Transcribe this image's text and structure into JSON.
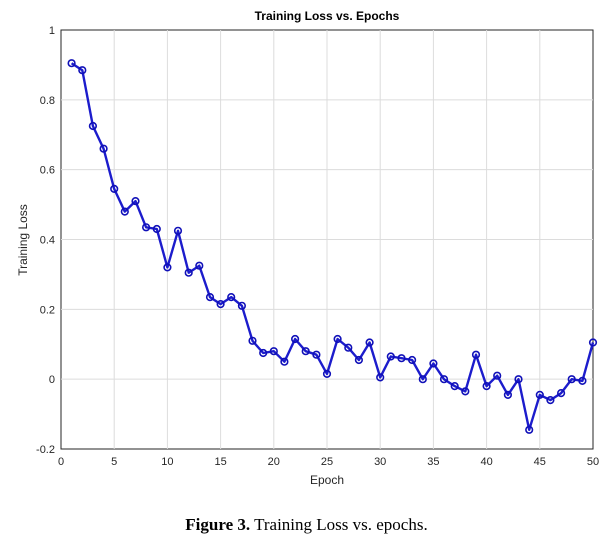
{
  "chart_data": {
    "type": "line",
    "title": "Training Loss vs. Epochs",
    "xlabel": "Epoch",
    "ylabel": "Training Loss",
    "xlim": [
      0,
      50
    ],
    "ylim": [
      -0.2,
      1
    ],
    "xticks": [
      0,
      5,
      10,
      15,
      20,
      25,
      30,
      35,
      40,
      45,
      50
    ],
    "yticks": [
      -0.2,
      0,
      0.2,
      0.4,
      0.6,
      0.8,
      1
    ],
    "ytick_labels": [
      "-0.2",
      "0",
      "0.2",
      "0.4",
      "0.6",
      "0.8",
      "1"
    ],
    "grid": true,
    "series": [
      {
        "color": "#1c1ccc",
        "marker": "circle",
        "x": [
          1,
          2,
          3,
          4,
          5,
          6,
          7,
          8,
          9,
          10,
          11,
          12,
          13,
          14,
          15,
          16,
          17,
          18,
          19,
          20,
          21,
          22,
          23,
          24,
          25,
          26,
          27,
          28,
          29,
          30,
          31,
          32,
          33,
          34,
          35,
          36,
          37,
          38,
          39,
          40,
          41,
          42,
          43,
          44,
          45,
          46,
          47,
          48,
          49,
          50
        ],
        "y": [
          0.905,
          0.885,
          0.725,
          0.66,
          0.545,
          0.48,
          0.51,
          0.435,
          0.43,
          0.32,
          0.425,
          0.305,
          0.325,
          0.235,
          0.215,
          0.235,
          0.21,
          0.11,
          0.075,
          0.08,
          0.05,
          0.115,
          0.08,
          0.07,
          0.015,
          0.115,
          0.09,
          0.055,
          0.105,
          0.005,
          0.065,
          0.06,
          0.055,
          0.0,
          0.045,
          0.0,
          -0.02,
          -0.035,
          0.07,
          -0.02,
          0.01,
          -0.045,
          0.0,
          -0.145,
          -0.045,
          -0.06,
          -0.04,
          0.0,
          -0.005,
          0.105
        ]
      }
    ]
  },
  "caption": {
    "label": "Figure 3.",
    "text": " Training Loss vs. epochs."
  }
}
